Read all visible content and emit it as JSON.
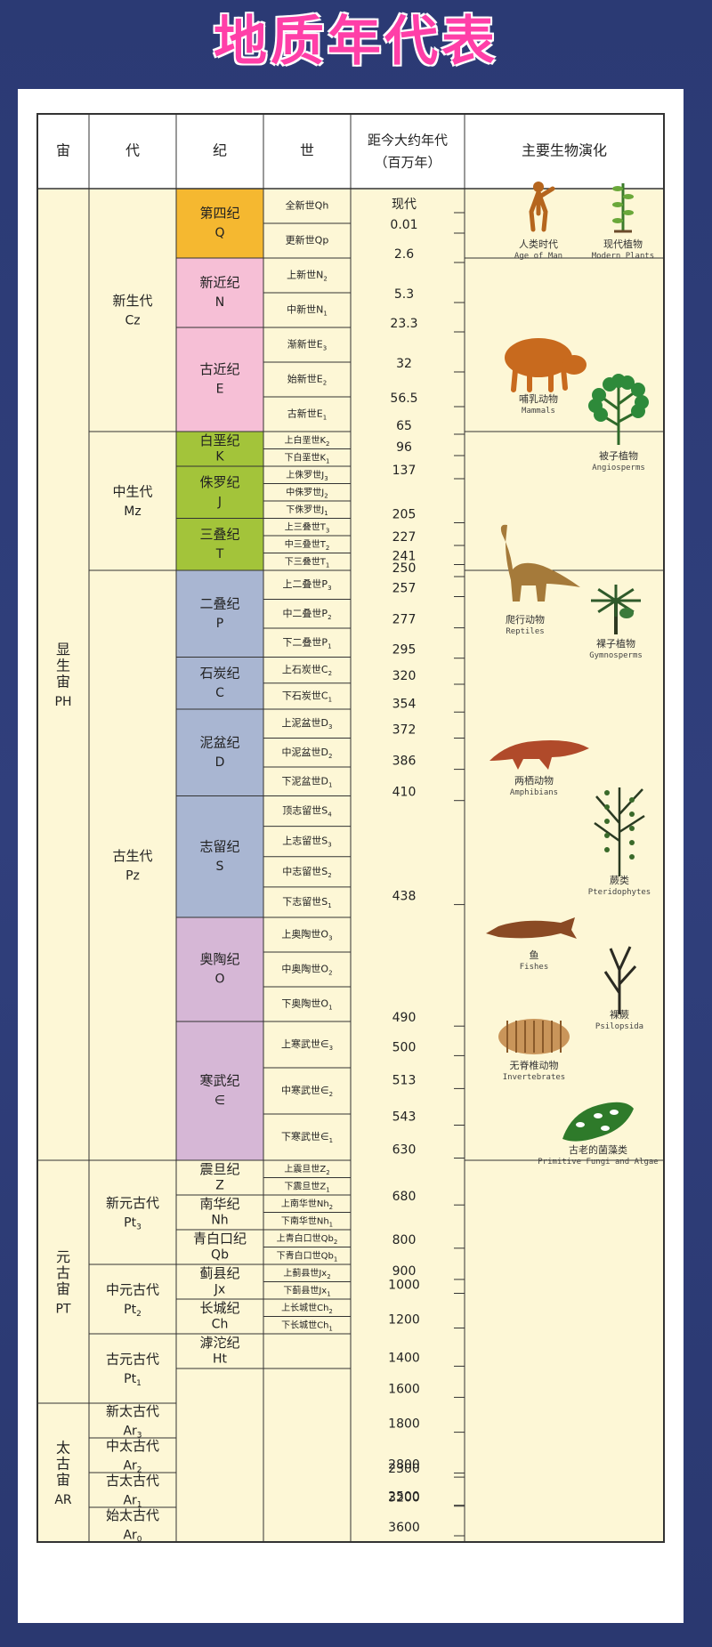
{
  "title": "地质年代表",
  "headers": {
    "eon": "宙",
    "era": "代",
    "period": "纪",
    "epoch": "世",
    "age_line1": "距今大约年代",
    "age_line2": "（百万年）",
    "life": "主要生物演化"
  },
  "eons": [
    {
      "name": "显生宙",
      "code": "PH",
      "from": 0,
      "to": 28
    },
    {
      "name": "元古宙",
      "code": "PT",
      "from": 28,
      "to": 35
    },
    {
      "name": "太古宙",
      "code": "AR",
      "from": 35,
      "to": 39
    }
  ],
  "eras": [
    {
      "name": "新生代",
      "code": "Cz",
      "from": 0,
      "to": 7
    },
    {
      "name": "中生代",
      "code": "Mz",
      "from": 7,
      "to": 11
    },
    {
      "name": "古生代",
      "code": "Pz",
      "from": 11,
      "to": 28
    },
    {
      "name": "新元古代",
      "code": "Pt3",
      "from": 28,
      "to": 31
    },
    {
      "name": "中元古代",
      "code": "Pt2",
      "from": 31,
      "to": 33
    },
    {
      "name": "古元古代",
      "code": "Pt1",
      "from": 33,
      "to": 35
    },
    {
      "name": "新太古代",
      "code": "Ar3",
      "from": 35,
      "to": 36
    },
    {
      "name": "中太古代",
      "code": "Ar2",
      "from": 36,
      "to": 37
    },
    {
      "name": "古太古代",
      "code": "Ar1",
      "from": 37,
      "to": 38
    },
    {
      "name": "始太古代",
      "code": "Ar0",
      "from": 38,
      "to": 39
    }
  ],
  "periods": [
    {
      "name": "第四纪",
      "code": "Q",
      "color": "#f5b830",
      "from": 0,
      "to": 2
    },
    {
      "name": "新近纪",
      "code": "N",
      "color": "#f6bfd6",
      "from": 2,
      "to": 4
    },
    {
      "name": "古近纪",
      "code": "E",
      "color": "#f6bfd6",
      "from": 4,
      "to": 7
    },
    {
      "name": "白垩纪",
      "code": "K",
      "color": "#a3c43a",
      "from": 7,
      "to": 8
    },
    {
      "name": "侏罗纪",
      "code": "J",
      "color": "#a3c43a",
      "from": 8,
      "to": 9.5
    },
    {
      "name": "三叠纪",
      "code": "T",
      "color": "#a3c43a",
      "from": 9.5,
      "to": 11
    },
    {
      "name": "二叠纪",
      "code": "P",
      "color": "#a9b6d2",
      "from": 11,
      "to": 13.5
    },
    {
      "name": "石炭纪",
      "code": "C",
      "color": "#a9b6d2",
      "from": 13.5,
      "to": 15
    },
    {
      "name": "泥盆纪",
      "code": "D",
      "color": "#a9b6d2",
      "from": 15,
      "to": 17.5
    },
    {
      "name": "志留纪",
      "code": "S",
      "color": "#a9b6d2",
      "from": 17.5,
      "to": 21
    },
    {
      "name": "奥陶纪",
      "code": "O",
      "color": "#d6b7d6",
      "from": 21,
      "to": 24
    },
    {
      "name": "寒武纪",
      "code": "∈",
      "color": "#d6b7d6",
      "from": 24,
      "to": 28
    },
    {
      "name": "震旦纪",
      "code": "Z",
      "color": "",
      "from": 28,
      "to": 29
    },
    {
      "name": "南华纪",
      "code": "Nh",
      "color": "",
      "from": 29,
      "to": 30
    },
    {
      "name": "青白口纪",
      "code": "Qb",
      "color": "",
      "from": 30,
      "to": 31
    },
    {
      "name": "蓟县纪",
      "code": "Jx",
      "color": "",
      "from": 31,
      "to": 32
    },
    {
      "name": "长城纪",
      "code": "Ch",
      "color": "",
      "from": 32,
      "to": 33
    },
    {
      "name": "滹沱纪",
      "code": "Ht",
      "color": "",
      "from": 33,
      "to": 34
    }
  ],
  "epochs": [
    "全新世Qh",
    "更新世Qp",
    "上新世N2",
    "中新世N1",
    "渐新世E3",
    "始新世E2",
    "古新世E1",
    "上白垩世K2",
    "下白垩世K1",
    "上侏罗世J3",
    "中侏罗世J2",
    "下侏罗世J1",
    "上三叠世T3",
    "中三叠世T2",
    "下三叠世T1",
    "上二叠世P3",
    "中二叠世P2",
    "下二叠世P1",
    "上石炭世C2",
    "下石炭世C1",
    "上泥盆世D3",
    "中泥盆世D2",
    "下泥盆世D1",
    "顶志留世S4",
    "上志留世S3",
    "中志留世S2",
    "下志留世S1",
    "上奥陶世O3",
    "中奥陶世O2",
    "下奥陶世O1",
    "上寒武世∈3",
    "中寒武世∈2",
    "下寒武世∈1",
    "上震旦世Z2",
    "下震旦世Z1",
    "上南华世Nh2",
    "下南华世Nh1",
    "上青白口世Qb2",
    "下青白口世Qb1",
    "上蓟县世Jx2",
    "下蓟县世Jx1",
    "上长城世Ch2",
    "下长城世Ch1",
    ""
  ],
  "ages": [
    "现代",
    "0.01",
    "2.6",
    "5.3",
    "23.3",
    "32",
    "56.5",
    "65",
    "96",
    "137",
    "205",
    "227",
    "241",
    "250",
    "257",
    "277",
    "295",
    "320",
    "354",
    "372",
    "386",
    "410",
    "438",
    "490",
    "500",
    "513",
    "543",
    "630",
    "680",
    "800",
    "900",
    "1000",
    "1200",
    "1400",
    "1600",
    "1800",
    "2300",
    "2500",
    "2800",
    "3200",
    "3600"
  ],
  "life": [
    {
      "name": "人类时代",
      "en": "Age of Man",
      "icon": "human-icon"
    },
    {
      "name": "现代植物",
      "en": "Modern Plants",
      "icon": "modern-plant-icon"
    },
    {
      "name": "哺乳动物",
      "en": "Mammals",
      "icon": "mammal-icon"
    },
    {
      "name": "被子植物",
      "en": "Angiosperms",
      "icon": "angiosperm-icon"
    },
    {
      "name": "爬行动物",
      "en": "Reptiles",
      "icon": "dinosaur-icon"
    },
    {
      "name": "裸子植物",
      "en": "Gymnosperms",
      "icon": "cycad-icon"
    },
    {
      "name": "两栖动物",
      "en": "Amphibians",
      "icon": "amphibian-icon"
    },
    {
      "name": "蕨类",
      "en": "Pteridophytes",
      "icon": "fern-icon"
    },
    {
      "name": "鱼",
      "en": "Fishes",
      "icon": "fish-icon"
    },
    {
      "name": "裸蕨",
      "en": "Psilopsida",
      "icon": "psilophyte-icon"
    },
    {
      "name": "无脊椎动物",
      "en": "Invertebrates",
      "icon": "trilobite-icon"
    },
    {
      "name": "古老的菌藻类",
      "en": "Primitive Fungi and Algae",
      "icon": "algae-icon"
    }
  ],
  "colors": {
    "cream": "#fdf7d6",
    "grid": "#333333",
    "title": "#ff3fa8"
  }
}
